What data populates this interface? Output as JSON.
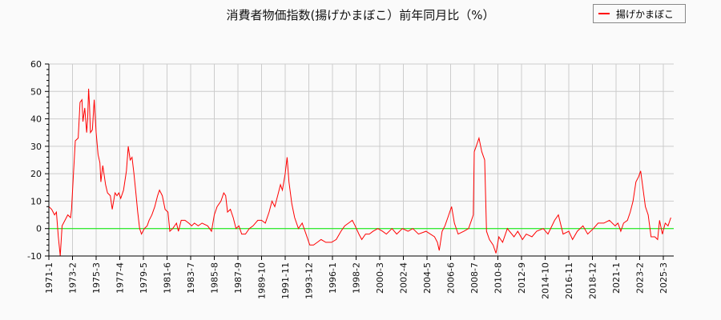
{
  "chart_data": {
    "type": "line",
    "title": "消費者物価指数(揚げかまぼこ）前年同月比（%）",
    "xlabel": "",
    "ylabel": "",
    "ylim": [
      -10,
      60
    ],
    "yticks": [
      -10,
      0,
      10,
      20,
      30,
      40,
      50,
      60
    ],
    "xticks": [
      "1971-1",
      "1973-2",
      "1975-3",
      "1977-4",
      "1979-5",
      "1981-6",
      "1983-7",
      "1985-8",
      "1987-9",
      "1989-10",
      "1991-11",
      "1993-12",
      "1996-1",
      "1998-2",
      "2000-3",
      "2002-4",
      "2004-5",
      "2006-6",
      "2008-7",
      "2010-8",
      "2012-9",
      "2014-10",
      "2016-11",
      "2018-12",
      "2021-1",
      "2023-2",
      "2025-3"
    ],
    "grid": true,
    "legend_position": "top-right",
    "reference_line": {
      "y": 0,
      "color": "#00ee00"
    },
    "series": [
      {
        "name": "揚げかまぼこ",
        "color": "#ff0000",
        "points": [
          [
            "1971-1",
            8
          ],
          [
            "1971-4",
            7
          ],
          [
            "1971-7",
            5
          ],
          [
            "1971-9",
            6
          ],
          [
            "1971-11",
            -3
          ],
          [
            "1972-1",
            -10
          ],
          [
            "1972-3",
            1
          ],
          [
            "1972-6",
            3
          ],
          [
            "1972-9",
            5
          ],
          [
            "1972-12",
            4
          ],
          [
            "1973-1",
            7
          ],
          [
            "1973-3",
            20
          ],
          [
            "1973-5",
            32
          ],
          [
            "1973-8",
            33
          ],
          [
            "1973-10",
            46
          ],
          [
            "1973-12",
            47
          ],
          [
            "1974-1",
            39
          ],
          [
            "1974-3",
            44
          ],
          [
            "1974-5",
            35
          ],
          [
            "1974-6",
            40
          ],
          [
            "1974-7",
            51
          ],
          [
            "1974-8",
            45
          ],
          [
            "1974-9",
            35
          ],
          [
            "1974-11",
            36
          ],
          [
            "1975-1",
            47
          ],
          [
            "1975-3",
            35
          ],
          [
            "1975-5",
            27
          ],
          [
            "1975-7",
            24
          ],
          [
            "1975-8",
            17
          ],
          [
            "1975-10",
            23
          ],
          [
            "1976-1",
            16
          ],
          [
            "1976-3",
            13
          ],
          [
            "1976-6",
            12
          ],
          [
            "1976-8",
            7
          ],
          [
            "1976-11",
            13
          ],
          [
            "1977-1",
            12
          ],
          [
            "1977-3",
            13
          ],
          [
            "1977-5",
            11
          ],
          [
            "1977-8",
            14
          ],
          [
            "1977-11",
            21
          ],
          [
            "1978-1",
            30
          ],
          [
            "1978-3",
            25
          ],
          [
            "1978-5",
            26
          ],
          [
            "1978-7",
            20
          ],
          [
            "1978-9",
            13
          ],
          [
            "1978-11",
            6
          ],
          [
            "1979-1",
            0
          ],
          [
            "1979-3",
            -2
          ],
          [
            "1979-6",
            0
          ],
          [
            "1979-9",
            1
          ],
          [
            "1979-11",
            3
          ],
          [
            "1980-2",
            5
          ],
          [
            "1980-5",
            8
          ],
          [
            "1980-8",
            12
          ],
          [
            "1980-10",
            14
          ],
          [
            "1981-1",
            12
          ],
          [
            "1981-4",
            7
          ],
          [
            "1981-7",
            6
          ],
          [
            "1981-9",
            -1
          ],
          [
            "1981-12",
            0
          ],
          [
            "1982-4",
            2
          ],
          [
            "1982-6",
            -1
          ],
          [
            "1982-9",
            3
          ],
          [
            "1983-1",
            3
          ],
          [
            "1983-5",
            2
          ],
          [
            "1983-8",
            1
          ],
          [
            "1983-11",
            2
          ],
          [
            "1984-3",
            1
          ],
          [
            "1984-7",
            2
          ],
          [
            "1985-1",
            1
          ],
          [
            "1985-5",
            -1
          ],
          [
            "1985-8",
            5
          ],
          [
            "1985-11",
            8
          ],
          [
            "1986-3",
            10
          ],
          [
            "1986-6",
            13
          ],
          [
            "1986-8",
            12
          ],
          [
            "1986-10",
            6
          ],
          [
            "1987-1",
            7
          ],
          [
            "1987-4",
            4
          ],
          [
            "1987-7",
            0
          ],
          [
            "1987-10",
            1
          ],
          [
            "1988-1",
            -2
          ],
          [
            "1988-5",
            -2
          ],
          [
            "1988-9",
            0
          ],
          [
            "1989-1",
            1
          ],
          [
            "1989-6",
            3
          ],
          [
            "1989-10",
            3
          ],
          [
            "1990-2",
            2
          ],
          [
            "1990-6",
            6
          ],
          [
            "1990-9",
            10
          ],
          [
            "1990-12",
            8
          ],
          [
            "1991-3",
            12
          ],
          [
            "1991-6",
            16
          ],
          [
            "1991-8",
            14
          ],
          [
            "1991-11",
            20
          ],
          [
            "1992-1",
            26
          ],
          [
            "1992-3",
            17
          ],
          [
            "1992-6",
            9
          ],
          [
            "1992-9",
            4
          ],
          [
            "1993-1",
            0
          ],
          [
            "1993-5",
            2
          ],
          [
            "1993-9",
            -2
          ],
          [
            "1994-1",
            -6
          ],
          [
            "1994-5",
            -6
          ],
          [
            "1994-9",
            -5
          ],
          [
            "1995-1",
            -4
          ],
          [
            "1995-6",
            -5
          ],
          [
            "1995-12",
            -5
          ],
          [
            "1996-5",
            -4
          ],
          [
            "1996-10",
            -1
          ],
          [
            "1997-2",
            1
          ],
          [
            "1997-6",
            2
          ],
          [
            "1997-10",
            3
          ],
          [
            "1998-1",
            1
          ],
          [
            "1998-5",
            -2
          ],
          [
            "1998-8",
            -4
          ],
          [
            "1998-12",
            -2
          ],
          [
            "1999-4",
            -2
          ],
          [
            "1999-8",
            -1
          ],
          [
            "2000-1",
            0
          ],
          [
            "2000-6",
            -1
          ],
          [
            "2000-10",
            -2
          ],
          [
            "2001-4",
            0
          ],
          [
            "2001-9",
            -2
          ],
          [
            "2002-3",
            0
          ],
          [
            "2002-9",
            -1
          ],
          [
            "2003-2",
            0
          ],
          [
            "2003-8",
            -2
          ],
          [
            "2004-4",
            -1
          ],
          [
            "2005-1",
            -3
          ],
          [
            "2005-4",
            -5
          ],
          [
            "2005-6",
            -8
          ],
          [
            "2005-9",
            -1
          ],
          [
            "2005-12",
            1
          ],
          [
            "2006-3",
            4
          ],
          [
            "2006-7",
            8
          ],
          [
            "2006-10",
            2
          ],
          [
            "2007-2",
            -2
          ],
          [
            "2007-8",
            -1
          ],
          [
            "2008-1",
            0
          ],
          [
            "2008-4",
            3
          ],
          [
            "2008-6",
            5
          ],
          [
            "2008-7",
            28
          ],
          [
            "2008-9",
            30
          ],
          [
            "2008-12",
            33
          ],
          [
            "2009-3",
            28
          ],
          [
            "2009-6",
            25
          ],
          [
            "2009-8",
            -1
          ],
          [
            "2009-11",
            -4
          ],
          [
            "2010-3",
            -6
          ],
          [
            "2010-6",
            -9
          ],
          [
            "2010-9",
            -3
          ],
          [
            "2011-1",
            -5
          ],
          [
            "2011-6",
            0
          ],
          [
            "2012-1",
            -3
          ],
          [
            "2012-5",
            -1
          ],
          [
            "2012-10",
            -4
          ],
          [
            "2013-2",
            -2
          ],
          [
            "2013-8",
            -3
          ],
          [
            "2014-1",
            -1
          ],
          [
            "2014-8",
            0
          ],
          [
            "2015-1",
            -2
          ],
          [
            "2015-8",
            3
          ],
          [
            "2015-12",
            5
          ],
          [
            "2016-5",
            -2
          ],
          [
            "2016-11",
            -1
          ],
          [
            "2017-3",
            -4
          ],
          [
            "2017-8",
            -1
          ],
          [
            "2018-2",
            1
          ],
          [
            "2018-7",
            -2
          ],
          [
            "2019-1",
            0
          ],
          [
            "2019-6",
            2
          ],
          [
            "2019-12",
            2
          ],
          [
            "2020-6",
            3
          ],
          [
            "2020-12",
            1
          ],
          [
            "2021-3",
            2
          ],
          [
            "2021-6",
            -1
          ],
          [
            "2021-9",
            2
          ],
          [
            "2022-1",
            3
          ],
          [
            "2022-4",
            6
          ],
          [
            "2022-7",
            10
          ],
          [
            "2022-10",
            17
          ],
          [
            "2023-1",
            19
          ],
          [
            "2023-3",
            21
          ],
          [
            "2023-5",
            16
          ],
          [
            "2023-8",
            8
          ],
          [
            "2023-11",
            5
          ],
          [
            "2024-2",
            -3
          ],
          [
            "2024-6",
            -3
          ],
          [
            "2024-9",
            -4
          ],
          [
            "2024-11",
            3
          ],
          [
            "2025-2",
            -2
          ],
          [
            "2025-5",
            2
          ],
          [
            "2025-8",
            1
          ],
          [
            "2025-11",
            4
          ]
        ]
      }
    ]
  }
}
